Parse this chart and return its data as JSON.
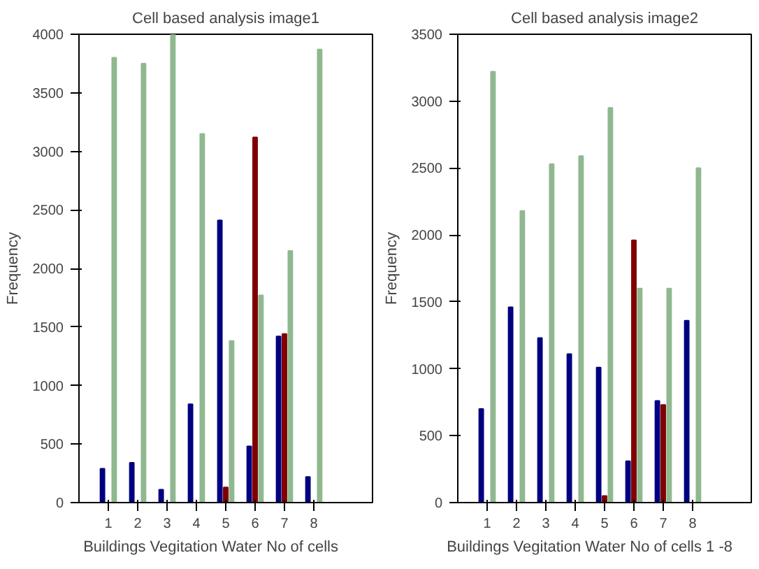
{
  "chart_data": [
    {
      "type": "bar",
      "title": "Cell based analysis image1",
      "xlabel": "Buildings   Vegitation    Water   No of cells",
      "ylabel": "Frequency",
      "categories": [
        "1",
        "2",
        "3",
        "4",
        "5",
        "6",
        "7",
        "8"
      ],
      "ylim": [
        0,
        4000
      ],
      "yticks": [
        0,
        500,
        1000,
        1500,
        2000,
        2500,
        3000,
        3500,
        4000
      ],
      "series": [
        {
          "color": "#000080",
          "values": [
            290,
            340,
            110,
            840,
            2410,
            480,
            1420,
            220
          ]
        },
        {
          "color": "#800000",
          "values": [
            0,
            0,
            0,
            0,
            130,
            3120,
            1440,
            0
          ]
        },
        {
          "color": "#90b890",
          "values": [
            3800,
            3750,
            4000,
            3150,
            1380,
            1770,
            2150,
            3870
          ]
        }
      ]
    },
    {
      "type": "bar",
      "title": "Cell based analysis image2",
      "xlabel": "Buildings   Vegitation    Water   No of cells 1 -8",
      "ylabel": "Frequency",
      "categories": [
        "1",
        "2",
        "3",
        "4",
        "5",
        "6",
        "7",
        "8"
      ],
      "ylim": [
        0,
        3500
      ],
      "yticks": [
        0,
        500,
        1000,
        1500,
        2000,
        2500,
        3000,
        3500
      ],
      "series": [
        {
          "color": "#000080",
          "values": [
            700,
            1460,
            1230,
            1110,
            1010,
            310,
            760,
            1360
          ]
        },
        {
          "color": "#800000",
          "values": [
            0,
            0,
            0,
            0,
            50,
            1960,
            730,
            0
          ]
        },
        {
          "color": "#90b890",
          "values": [
            3220,
            2180,
            2530,
            2590,
            2950,
            1600,
            1600,
            2500
          ]
        }
      ]
    }
  ]
}
